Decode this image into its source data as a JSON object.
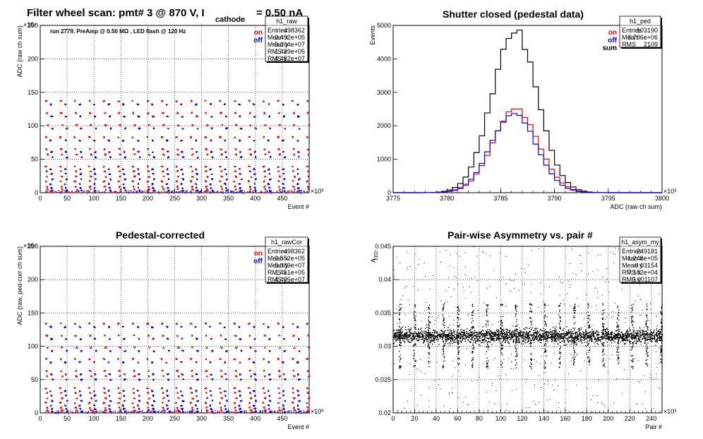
{
  "page_title": {
    "main": "Filter wheel scan: pmt#   3 @   870 V, I",
    "sub": "cathode",
    "tail": "= 0.50 nA"
  },
  "colors": {
    "on": "#ff0000",
    "off": "#0000ff",
    "sum": "#000000"
  },
  "chart_data": [
    {
      "id": "raw",
      "type": "scatter",
      "title": "",
      "subtitle": "run 2779, PreAmp @ 0.50 MΩ , LED flash @  120 Hz",
      "xlabel": "Event #",
      "ylabel": "ADC (raw ch sum)",
      "x_multiplier": "×10³",
      "y_multiplier": "×10⁴",
      "xlim": [
        0,
        500
      ],
      "ylim": [
        0,
        250
      ],
      "xticks": [
        0,
        50,
        100,
        150,
        200,
        250,
        300,
        350,
        400,
        450
      ],
      "yticks": [
        0,
        50,
        100,
        150,
        200,
        250
      ],
      "grid": true,
      "legend": [
        "on",
        "off"
      ],
      "stats": {
        "name": "h1_raw",
        "rows": [
          [
            "Entries",
            "498362"
          ],
          [
            "Mean x",
            "2.492e+05"
          ],
          [
            "Mean y",
            "5.204e+07"
          ],
          [
            "RMS x",
            "1.439e+05"
          ],
          [
            "RMS y",
            "4.482e+07"
          ]
        ]
      },
      "level_groups": [
        {
          "on": [
            138,
            120,
            102,
            84,
            66,
            58,
            40,
            33,
            25,
            18,
            10,
            6
          ],
          "off": [
            133,
            115,
            97,
            79,
            62,
            54,
            36,
            29,
            21,
            14,
            8,
            4
          ]
        }
      ],
      "cycle_period": 27,
      "cycle_start": 8
    },
    {
      "id": "ped",
      "type": "line",
      "title": "Shutter closed (pedestal data)",
      "xlabel": "ADC (raw ch sum)",
      "ylabel": "Events",
      "x_multiplier": "×10³",
      "xlim": [
        3775,
        3800
      ],
      "ylim": [
        0,
        5000
      ],
      "xticks": [
        3775,
        3780,
        3785,
        3790,
        3795,
        3800
      ],
      "yticks": [
        0,
        1000,
        2000,
        3000,
        4000,
        5000
      ],
      "grid": false,
      "legend": [
        "on",
        "off",
        "sum"
      ],
      "stats": {
        "name": "h1_ped",
        "rows": [
          [
            "Entries",
            "103190"
          ],
          [
            "Mean",
            "3.786e+06"
          ],
          [
            "RMS",
            "2109"
          ]
        ]
      },
      "series": [
        {
          "name": "sum",
          "peak": 4850,
          "mean": 3786.3,
          "sigma": 2.11
        },
        {
          "name": "on",
          "peak": 2480,
          "mean": 3786.4,
          "sigma": 2.1
        },
        {
          "name": "off",
          "peak": 2360,
          "mean": 3786.2,
          "sigma": 2.1
        }
      ]
    },
    {
      "id": "rawCor",
      "type": "scatter",
      "title": "Pedestal-corrected",
      "xlabel": "Event #",
      "ylabel": "ADC (raw, ped-corr ch sum)",
      "x_multiplier": "×10³",
      "y_multiplier": "×10⁴",
      "xlim": [
        0,
        500
      ],
      "ylim": [
        0,
        250
      ],
      "xticks": [
        0,
        50,
        100,
        150,
        200,
        250,
        300,
        350,
        400,
        450
      ],
      "yticks": [
        0,
        50,
        100,
        150,
        200,
        250
      ],
      "grid": true,
      "legend": [
        "on",
        "off"
      ],
      "stats": {
        "name": "h1_rawCor",
        "rows": [
          [
            "Entries",
            "498362"
          ],
          [
            "Mean x",
            "2.552e+05"
          ],
          [
            "Mean y",
            "5.389e+07"
          ],
          [
            "RMS x",
            "1.451e+05"
          ],
          [
            "RMS y",
            "4.405e+07"
          ]
        ]
      },
      "level_groups": [
        {
          "on": [
            135,
            117,
            99,
            82,
            64,
            56,
            38,
            31,
            23,
            16,
            9,
            5
          ],
          "off": [
            130,
            112,
            94,
            77,
            59,
            51,
            34,
            27,
            19,
            12,
            7,
            3
          ]
        }
      ],
      "cycle_period": 27,
      "cycle_start": 8
    },
    {
      "id": "asym",
      "type": "scatter",
      "title": "Pair-wise Asymmetry vs. pair #",
      "xlabel": "Pair #",
      "ylabel": "A",
      "ylabel_sub": "LED",
      "x_multiplier": "×10³",
      "xlim": [
        0,
        250
      ],
      "ylim": [
        0.02,
        0.045
      ],
      "xticks": [
        0,
        20,
        40,
        60,
        80,
        100,
        120,
        140,
        160,
        180,
        200,
        220,
        240
      ],
      "yticks": [
        0.02,
        0.025,
        0.03,
        0.035,
        0.04,
        0.045
      ],
      "ytick_labels": [
        "0.02",
        "0.025",
        "0.03",
        "0.035",
        "0.04",
        "0.045"
      ],
      "grid": true,
      "stats": {
        "name": "h1_asym_my",
        "rows": [
          [
            "Entries",
            "249181"
          ],
          [
            "Mean x",
            "1.248e+05"
          ],
          [
            "Mean y",
            "0.03154"
          ],
          [
            "RMS x",
            "7.182e+04"
          ],
          [
            "RMS y",
            "0.001107"
          ]
        ]
      },
      "band_center": 0.0316,
      "band_halfwidth": 0.0009,
      "spike_period": 13.5,
      "spike_start": 5
    }
  ]
}
